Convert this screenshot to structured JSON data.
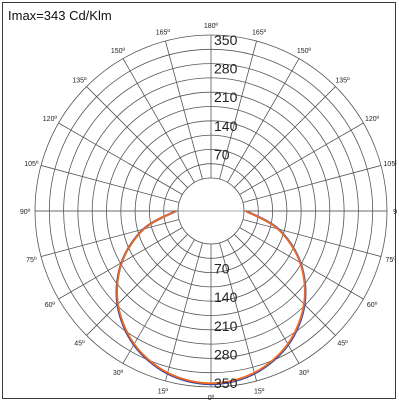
{
  "chart_data": {
    "type": "polar",
    "title": "Imax=343 Cd/Klm",
    "radial_ticks": [
      70,
      140,
      210,
      280,
      350
    ],
    "radial_tick_labels_upper": [
      "70",
      "140",
      "210",
      "280",
      "350"
    ],
    "radial_tick_labels_lower": [
      "70",
      "140",
      "210",
      "280",
      "350"
    ],
    "angle_labels_left": [
      "0º",
      "15º",
      "30º",
      "45º",
      "60º",
      "75º",
      "90º",
      "105º",
      "120º",
      "135º",
      "150º",
      "165º",
      "180º"
    ],
    "angle_labels_right": [
      "",
      "15º",
      "30º",
      "45º",
      "60º",
      "75º",
      "90",
      "105º",
      "120º",
      "135º",
      "150º",
      "165º",
      ""
    ],
    "rlim": [
      0,
      350
    ],
    "series": [
      {
        "color": "#3344aa",
        "angles_deg": [
          0,
          15,
          30,
          45,
          60,
          75,
          90
        ],
        "values": [
          343,
          331,
          297,
          243,
          172,
          90,
          5
        ]
      },
      {
        "color": "#f06a1f",
        "angles_deg": [
          0,
          15,
          30,
          45,
          60,
          75,
          90
        ],
        "values": [
          341,
          329,
          295,
          241,
          171,
          89,
          5
        ]
      }
    ],
    "colors": {
      "grid": "#555555",
      "text": "#222222",
      "border": "#3a3a3a"
    }
  }
}
